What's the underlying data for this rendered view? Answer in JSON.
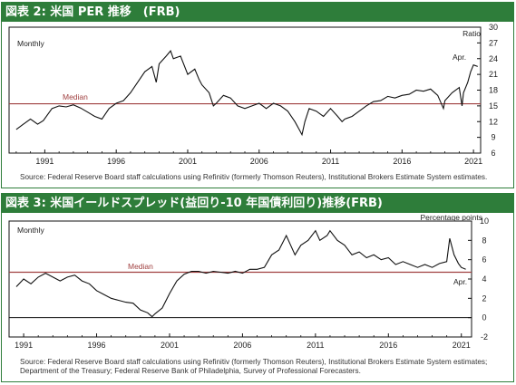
{
  "colors": {
    "header_bg": "#2e7d3a",
    "header_text": "#ffffff",
    "line": "#111111",
    "median": "#a04040",
    "median_label": "#a04040"
  },
  "charts": [
    {
      "title": "図表 2: 米国 PER 推移　(FRB)",
      "units_label": "Ratio",
      "frequency_label": "Monthly",
      "median_label": "Median",
      "end_label": "Apr.",
      "source": "Source: Federal Reserve Board staff calculations using Refinitiv (formerly Thomson Reuters), Institutional Brokers Estimate System estimates.",
      "x_ticks": [
        "1991",
        "1996",
        "2001",
        "2006",
        "2011",
        "2016",
        "2021"
      ],
      "y_ticks": [
        "30",
        "27",
        "24",
        "21",
        "18",
        "15",
        "12",
        "9",
        "6"
      ]
    },
    {
      "title": "図表 3: 米国イールドスプレッド(益回り-10 年国債利回り)推移(FRB)",
      "units_label": "Percentage points",
      "frequency_label": "Monthly",
      "median_label": "Median",
      "end_label": "Apr.",
      "source_lines": [
        "Source: Federal Reserve Board staff calculations using Refinitiv (formerly Thomson Reuters), Institutional Brokers Estimate System estimates;",
        "Department of the Treasury; Federal Reserve Bank of Philadelphia, Survey of Professional Forecasters."
      ],
      "x_ticks": [
        "1991",
        "1996",
        "2001",
        "2006",
        "2011",
        "2016",
        "2021"
      ],
      "y_ticks": [
        "10",
        "8",
        "6",
        "4",
        "2",
        "0",
        "-2"
      ]
    }
  ],
  "chart_data": [
    {
      "type": "line",
      "title": "図表 2: 米国 PER 推移　(FRB)",
      "ylabel": "Ratio",
      "x_range": [
        1988.5,
        2021.5
      ],
      "ylim": [
        6,
        30
      ],
      "y_tick_values": [
        6,
        9,
        12,
        15,
        18,
        21,
        24,
        27,
        30
      ],
      "x_tick_values": [
        1991,
        1996,
        2001,
        2006,
        2011,
        2016,
        2021
      ],
      "median": 15.4,
      "series": [
        {
          "x": [
            1989.0,
            1989.5,
            1990.0,
            1990.5,
            1990.9,
            1991.5,
            1992.0,
            1992.5,
            1993.0,
            1993.5,
            1994.0,
            1994.5,
            1995.0,
            1995.5,
            1996.0,
            1996.5,
            1997.0,
            1997.5,
            1998.0,
            1998.5,
            1998.8,
            1999.0,
            1999.5,
            1999.8,
            2000.0,
            2000.5,
            2001.0,
            2001.5,
            2001.8,
            2002.0,
            2002.5,
            2002.8,
            2003.0,
            2003.5,
            2004.0,
            2004.5,
            2005.0,
            2005.5,
            2006.0,
            2006.5,
            2007.0,
            2007.5,
            2008.0,
            2008.5,
            2008.8,
            2009.0,
            2009.2,
            2009.5,
            2010.0,
            2010.5,
            2011.0,
            2011.5,
            2011.8,
            2012.0,
            2012.5,
            2013.0,
            2013.5,
            2014.0,
            2014.5,
            2015.0,
            2015.5,
            2016.0,
            2016.5,
            2017.0,
            2017.5,
            2018.0,
            2018.5,
            2018.9,
            2019.0,
            2019.5,
            2020.0,
            2020.2,
            2020.3,
            2020.6,
            2020.8,
            2021.0,
            2021.3
          ],
          "y": [
            10.5,
            11.5,
            12.5,
            11.5,
            12.2,
            14.5,
            15.0,
            14.8,
            15.2,
            14.6,
            13.8,
            13.0,
            12.5,
            14.5,
            15.5,
            16.0,
            17.5,
            19.5,
            21.5,
            22.5,
            19.5,
            23.0,
            24.5,
            25.5,
            24.0,
            24.5,
            21.0,
            22.0,
            20.0,
            19.0,
            17.5,
            15.0,
            15.5,
            17.0,
            16.5,
            15.0,
            14.5,
            15.0,
            15.5,
            14.5,
            15.5,
            15.0,
            14.0,
            12.0,
            10.5,
            9.5,
            12.0,
            14.5,
            14.0,
            13.0,
            14.5,
            13.0,
            12.0,
            12.5,
            13.0,
            14.0,
            15.0,
            15.8,
            16.0,
            16.8,
            16.5,
            17.0,
            17.2,
            18.0,
            17.8,
            18.2,
            17.0,
            14.5,
            16.0,
            17.5,
            18.5,
            15.0,
            17.5,
            19.5,
            21.5,
            22.8,
            22.5
          ]
        }
      ],
      "annotations": [
        "Monthly",
        "Median",
        "Apr."
      ]
    },
    {
      "type": "line",
      "title": "図表 3: 米国イールドスプレッド(益回り-10 年国債利回り)推移(FRB)",
      "ylabel": "Percentage points",
      "x_range": [
        1990.0,
        2021.7
      ],
      "ylim": [
        -2,
        10
      ],
      "y_tick_values": [
        -2,
        0,
        2,
        4,
        6,
        8,
        10
      ],
      "x_tick_values": [
        1991,
        1996,
        2001,
        2006,
        2011,
        2016,
        2021
      ],
      "median": 4.7,
      "series": [
        {
          "x": [
            1990.5,
            1991.0,
            1991.5,
            1992.0,
            1992.5,
            1993.0,
            1993.5,
            1994.0,
            1994.5,
            1995.0,
            1995.5,
            1996.0,
            1996.5,
            1997.0,
            1997.5,
            1998.0,
            1998.5,
            1999.0,
            1999.5,
            1999.8,
            2000.0,
            2000.5,
            2001.0,
            2001.5,
            2002.0,
            2002.5,
            2003.0,
            2003.5,
            2004.0,
            2004.5,
            2005.0,
            2005.5,
            2006.0,
            2006.5,
            2007.0,
            2007.5,
            2008.0,
            2008.5,
            2009.0,
            2009.3,
            2009.6,
            2010.0,
            2010.5,
            2011.0,
            2011.3,
            2011.8,
            2012.0,
            2012.5,
            2013.0,
            2013.5,
            2014.0,
            2014.5,
            2015.0,
            2015.5,
            2016.0,
            2016.5,
            2017.0,
            2017.5,
            2018.0,
            2018.5,
            2019.0,
            2019.5,
            2020.0,
            2020.2,
            2020.5,
            2020.8,
            2021.0,
            2021.3
          ],
          "y": [
            3.2,
            4.0,
            3.5,
            4.2,
            4.6,
            4.2,
            3.8,
            4.2,
            4.4,
            3.8,
            3.5,
            2.8,
            2.4,
            2.0,
            1.8,
            1.6,
            1.5,
            0.8,
            0.5,
            0.1,
            0.4,
            1.0,
            2.5,
            3.8,
            4.5,
            4.8,
            4.8,
            4.6,
            4.8,
            4.7,
            4.6,
            4.8,
            4.6,
            5.0,
            5.0,
            5.2,
            6.5,
            7.0,
            8.5,
            7.5,
            6.5,
            7.5,
            8.0,
            9.0,
            8.0,
            8.5,
            9.0,
            8.0,
            7.5,
            6.5,
            6.8,
            6.2,
            6.5,
            6.0,
            6.2,
            5.5,
            5.8,
            5.5,
            5.2,
            5.5,
            5.2,
            5.6,
            5.8,
            8.2,
            6.5,
            5.6,
            5.2,
            5.0
          ]
        }
      ],
      "annotations": [
        "Monthly",
        "Median",
        "Apr."
      ]
    }
  ]
}
